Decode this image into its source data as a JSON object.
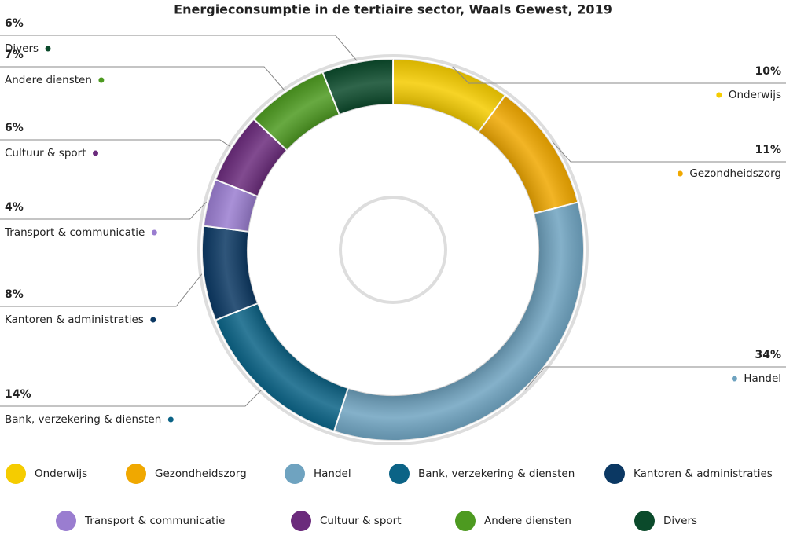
{
  "chart_data": {
    "type": "donut",
    "title": "Energieconsumptie in de tertiaire sector, Waals Gewest, 2019",
    "categories": [
      "Onderwijs",
      "Gezondheidszorg",
      "Handel",
      "Bank, verzekering & diensten",
      "Kantoren & administraties",
      "Transport & communicatie",
      "Cultuur & sport",
      "Andere diensten",
      "Divers"
    ],
    "values": [
      10,
      11,
      34,
      14,
      8,
      4,
      6,
      7,
      6
    ],
    "value_labels": [
      "10%",
      "11%",
      "34%",
      "14%",
      "8%",
      "4%",
      "6%",
      "7%",
      "6%"
    ],
    "colors": [
      "#f5cc00",
      "#f0a800",
      "#6fa3c0",
      "#0b6386",
      "#0b3863",
      "#9a7dd0",
      "#6b2b7c",
      "#4d9a20",
      "#0b4a2b"
    ],
    "legend": "bottom"
  }
}
